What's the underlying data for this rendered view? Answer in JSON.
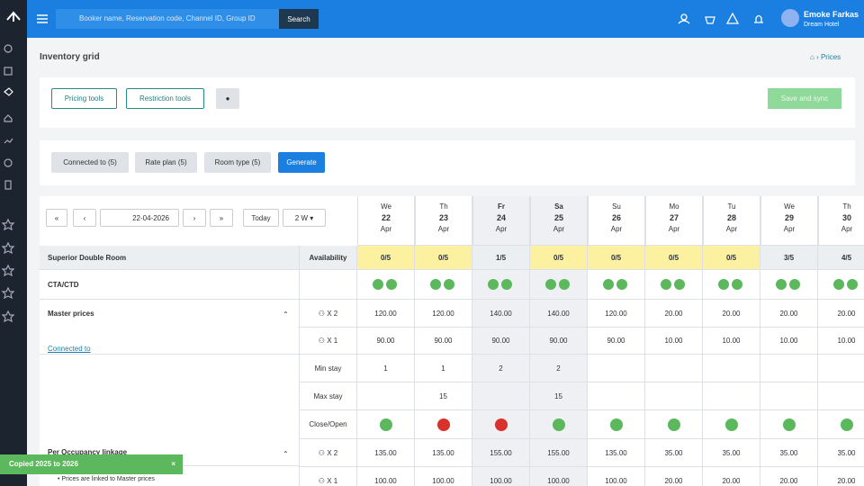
{
  "topbar": {
    "search_placeholder": "Booker name, Reservation code, Channel ID, Group ID",
    "search_button": "Search",
    "user_name": "Emoke Farkas",
    "hotel": "Dream Hotel"
  },
  "page": {
    "title": "Inventory grid",
    "breadcrumb": "Prices"
  },
  "toolbar": {
    "pricing_tools": "Pricing tools",
    "restriction_tools": "Restriction tools",
    "save": "Save and sync"
  },
  "filters": {
    "connected": "Connected to (5)",
    "rate_plan": "Rate plan (5)",
    "room_type": "Room type (5)",
    "generate": "Generate"
  },
  "grid": {
    "first": "«",
    "prev": "‹",
    "date": "22-04-2026",
    "next": "›",
    "last": "»",
    "today": "Today",
    "range": "2 W",
    "days": [
      {
        "weekday": "We",
        "day": "22",
        "month": "Apr"
      },
      {
        "weekday": "Th",
        "day": "23",
        "month": "Apr"
      },
      {
        "weekday": "Fr",
        "day": "24",
        "month": "Apr"
      },
      {
        "weekday": "Sa",
        "day": "25",
        "month": "Apr"
      },
      {
        "weekday": "Su",
        "day": "26",
        "month": "Apr"
      },
      {
        "weekday": "Mo",
        "day": "27",
        "month": "Apr"
      },
      {
        "weekday": "Tu",
        "day": "28",
        "month": "Apr"
      },
      {
        "weekday": "We",
        "day": "29",
        "month": "Apr"
      },
      {
        "weekday": "Th",
        "day": "30",
        "month": "Apr"
      }
    ],
    "room": "Superior Double Room",
    "availability_label": "Availability",
    "availability": [
      "0/5",
      "0/5",
      "1/5",
      "0/5",
      "0/5",
      "0/5",
      "0/5",
      "3/5",
      "4/5"
    ],
    "cta_label": "CTA/CTD",
    "master_label": "Master prices",
    "connected_link": "Connected to",
    "master_rows": [
      {
        "label": "X 2",
        "values": [
          "120.00",
          "120.00",
          "140.00",
          "140.00",
          "120.00",
          "20.00",
          "20.00",
          "20.00",
          "20.00"
        ]
      },
      {
        "label": "X 1",
        "values": [
          "90.00",
          "90.00",
          "90.00",
          "90.00",
          "90.00",
          "10.00",
          "10.00",
          "10.00",
          "10.00"
        ]
      }
    ],
    "min_stay": {
      "label": "Min stay",
      "values": [
        "1",
        "1",
        "2",
        "2",
        null,
        null,
        null,
        null,
        null
      ]
    },
    "max_stay": {
      "label": "Max stay",
      "values": [
        null,
        "15",
        null,
        "15",
        null,
        null,
        null,
        null,
        null
      ]
    },
    "close_open_label": "Close/Open",
    "occupancy_label": "Per Occupancy linkage",
    "occupancy_note": "Prices are linked to Master prices",
    "occupancy_rows": [
      {
        "label": "X 2",
        "values": [
          "135.00",
          "135.00",
          "155.00",
          "155.00",
          "135.00",
          "35.00",
          "35.00",
          "35.00",
          "35.00"
        ]
      },
      {
        "label": "X 1",
        "values": [
          "100.00",
          "100.00",
          "100.00",
          "100.00",
          "100.00",
          "20.00",
          "20.00",
          "20.00",
          "20.00"
        ]
      }
    ]
  },
  "toast": "Copied 2025 to 2026"
}
